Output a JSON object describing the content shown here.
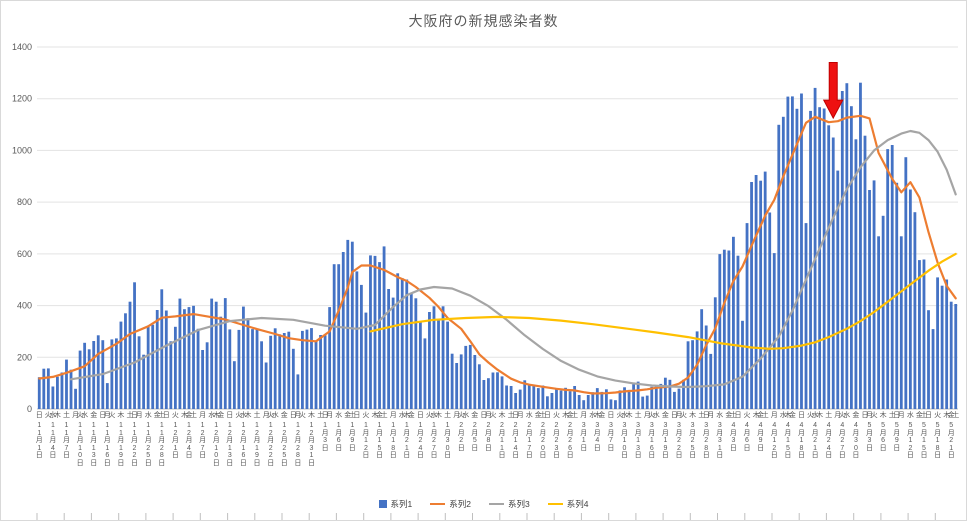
{
  "chart_data": {
    "type": "bar",
    "title": "大阪府の新規感染者数",
    "xlabel": "",
    "ylabel": "",
    "ylim": [
      0,
      1400
    ],
    "y_ticks": [
      "0",
      "200",
      "400",
      "600",
      "800",
      "1000",
      "1200",
      "1400"
    ],
    "grid": true,
    "legend_position": "bottom",
    "grid_color": "#e3e3e3",
    "axis_color": "#bfbfbf",
    "label_color": "#595959",
    "x_axis": {
      "weekday_cycle": [
        "日",
        "月",
        "火",
        "水",
        "木",
        "金",
        "土"
      ],
      "start_weekday": "日",
      "months": [
        {
          "month": 11,
          "days": 30
        },
        {
          "month": 12,
          "days": 31
        },
        {
          "month": 1,
          "days": 31
        },
        {
          "month": 2,
          "days": 28
        },
        {
          "month": 3,
          "days": 31
        },
        {
          "month": 4,
          "days": 30
        },
        {
          "month": 5,
          "days": 22
        }
      ],
      "first_label": "11月1日",
      "last_label": "5月22日"
    },
    "series": [
      {
        "name": "系列1",
        "type": "bar",
        "color": "#4472c4",
        "values": [
          123,
          156,
          157,
          87,
          125,
          141,
          191,
          152,
          78,
          226,
          256,
          231,
          263,
          285,
          266,
          100,
          269,
          273,
          338,
          370,
          415,
          490,
          281,
          210,
          318,
          326,
          383,
          463,
          381,
          262,
          318,
          427,
          386,
          394,
          399,
          310,
          228,
          258,
          427,
          415,
          357,
          429,
          308,
          185,
          306,
          396,
          351,
          309,
          311,
          262,
          180,
          283,
          312,
          289,
          294,
          299,
          233,
          134,
          302,
          307,
          313,
          262,
          286,
          285,
          394,
          560,
          560,
          607,
          654,
          647,
          532,
          480,
          373,
          594,
          592,
          568,
          629,
          464,
          431,
          525,
          506,
          501,
          450,
          428,
          338,
          273,
          375,
          397,
          345,
          397,
          338,
          214,
          178,
          211,
          244,
          248,
          209,
          173,
          112,
          119,
          141,
          142,
          126,
          91,
          89,
          62,
          75,
          111,
          91,
          89,
          81,
          91,
          49,
          62,
          80,
          71,
          82,
          69,
          89,
          54,
          34,
          54,
          65,
          81,
          66,
          76,
          37,
          34,
          72,
          84,
          74,
          96,
          106,
          48,
          52,
          86,
          93,
          97,
          121,
          113,
          66,
          79,
          113,
          262,
          266,
          300,
          386,
          323,
          213,
          432,
          599,
          616,
          613,
          666,
          593,
          341,
          719,
          878,
          905,
          883,
          918,
          760,
          603,
          1099,
          1130,
          1208,
          1209,
          1161,
          1220,
          719,
          1153,
          1242,
          1167,
          1162,
          1097,
          1050,
          922,
          1230,
          1260,
          1171,
          1043,
          1262,
          1057,
          847,
          884,
          668,
          747,
          1005,
          1021,
          875,
          668,
          974,
          849,
          761,
          576,
          578,
          382,
          309,
          509,
          477,
          501,
          415,
          406
        ]
      },
      {
        "name": "系列2",
        "type": "line",
        "color": "#ed7d31",
        "points": [
          [
            0,
            118
          ],
          [
            3,
            124
          ],
          [
            6,
            140
          ],
          [
            10,
            165
          ],
          [
            13,
            213
          ],
          [
            17,
            252
          ],
          [
            20,
            290
          ],
          [
            24,
            320
          ],
          [
            27,
            353
          ],
          [
            30,
            358
          ],
          [
            34,
            367
          ],
          [
            38,
            355
          ],
          [
            41,
            346
          ],
          [
            45,
            325
          ],
          [
            48,
            309
          ],
          [
            52,
            290
          ],
          [
            55,
            274
          ],
          [
            58,
            266
          ],
          [
            61,
            262
          ],
          [
            64,
            300
          ],
          [
            66,
            380
          ],
          [
            68,
            470
          ],
          [
            69,
            530
          ],
          [
            71,
            555
          ],
          [
            73,
            555
          ],
          [
            76,
            538
          ],
          [
            79,
            510
          ],
          [
            81,
            495
          ],
          [
            83,
            472
          ],
          [
            86,
            430
          ],
          [
            88,
            395
          ],
          [
            90,
            352
          ],
          [
            93,
            310
          ],
          [
            95,
            262
          ],
          [
            97,
            211
          ],
          [
            99,
            180
          ],
          [
            101,
            152
          ],
          [
            104,
            117
          ],
          [
            106,
            103
          ],
          [
            108,
            94
          ],
          [
            111,
            86
          ],
          [
            114,
            78
          ],
          [
            116,
            74
          ],
          [
            118,
            72
          ],
          [
            120,
            65
          ],
          [
            122,
            60
          ],
          [
            125,
            61
          ],
          [
            127,
            64
          ],
          [
            129,
            68
          ],
          [
            132,
            72
          ],
          [
            134,
            76
          ],
          [
            136,
            82
          ],
          [
            139,
            87
          ],
          [
            141,
            98
          ],
          [
            143,
            122
          ],
          [
            145,
            171
          ],
          [
            147,
            247
          ],
          [
            149,
            312
          ],
          [
            151,
            410
          ],
          [
            153,
            495
          ],
          [
            155,
            551
          ],
          [
            157,
            632
          ],
          [
            160,
            748
          ],
          [
            162,
            809
          ],
          [
            164,
            900
          ],
          [
            167,
            1024
          ],
          [
            169,
            1107
          ],
          [
            171,
            1130
          ],
          [
            174,
            1109
          ],
          [
            176,
            1113
          ],
          [
            178,
            1127
          ],
          [
            181,
            1134
          ],
          [
            183,
            1124
          ],
          [
            185,
            990
          ],
          [
            188,
            890
          ],
          [
            190,
            838
          ],
          [
            192,
            877
          ],
          [
            194,
            818
          ],
          [
            196,
            684
          ],
          [
            198,
            566
          ],
          [
            200,
            476
          ],
          [
            202,
            428
          ]
        ]
      },
      {
        "name": "系列3",
        "type": "line",
        "color": "#a5a5a5",
        "points": [
          [
            7,
            115
          ],
          [
            14,
            135
          ],
          [
            21,
            180
          ],
          [
            28,
            245
          ],
          [
            35,
            305
          ],
          [
            42,
            340
          ],
          [
            49,
            352
          ],
          [
            56,
            345
          ],
          [
            63,
            322
          ],
          [
            70,
            310
          ],
          [
            74,
            325
          ],
          [
            78,
            395
          ],
          [
            81,
            440
          ],
          [
            84,
            462
          ],
          [
            87,
            472
          ],
          [
            91,
            466
          ],
          [
            95,
            438
          ],
          [
            99,
            398
          ],
          [
            103,
            345
          ],
          [
            107,
            285
          ],
          [
            111,
            232
          ],
          [
            115,
            186
          ],
          [
            119,
            152
          ],
          [
            123,
            126
          ],
          [
            127,
            110
          ],
          [
            131,
            99
          ],
          [
            135,
            91
          ],
          [
            139,
            87
          ],
          [
            143,
            85
          ],
          [
            147,
            88
          ],
          [
            151,
            95
          ],
          [
            155,
            125
          ],
          [
            159,
            195
          ],
          [
            163,
            280
          ],
          [
            166,
            380
          ],
          [
            169,
            500
          ],
          [
            172,
            620
          ],
          [
            175,
            740
          ],
          [
            178,
            850
          ],
          [
            181,
            935
          ],
          [
            184,
            1000
          ],
          [
            187,
            1040
          ],
          [
            190,
            1065
          ],
          [
            192,
            1075
          ],
          [
            194,
            1068
          ],
          [
            196,
            1040
          ],
          [
            198,
            995
          ],
          [
            200,
            925
          ],
          [
            202,
            830
          ]
        ]
      },
      {
        "name": "系列4",
        "type": "line",
        "color": "#ffc000",
        "points": [
          [
            73,
            300
          ],
          [
            80,
            328
          ],
          [
            87,
            345
          ],
          [
            94,
            352
          ],
          [
            101,
            356
          ],
          [
            108,
            352
          ],
          [
            115,
            342
          ],
          [
            122,
            328
          ],
          [
            129,
            312
          ],
          [
            136,
            296
          ],
          [
            143,
            278
          ],
          [
            150,
            255
          ],
          [
            157,
            238
          ],
          [
            161,
            233
          ],
          [
            164,
            235
          ],
          [
            168,
            245
          ],
          [
            171,
            258
          ],
          [
            174,
            278
          ],
          [
            178,
            310
          ],
          [
            181,
            340
          ],
          [
            184,
            375
          ],
          [
            187,
            415
          ],
          [
            190,
            455
          ],
          [
            193,
            495
          ],
          [
            196,
            535
          ],
          [
            199,
            570
          ],
          [
            202,
            600
          ]
        ]
      }
    ],
    "annotation": {
      "type": "down-arrow",
      "index": 175,
      "tip_value": 1125,
      "top_value": 1340,
      "color": "#ee1111",
      "border_color": "#c00000"
    }
  }
}
